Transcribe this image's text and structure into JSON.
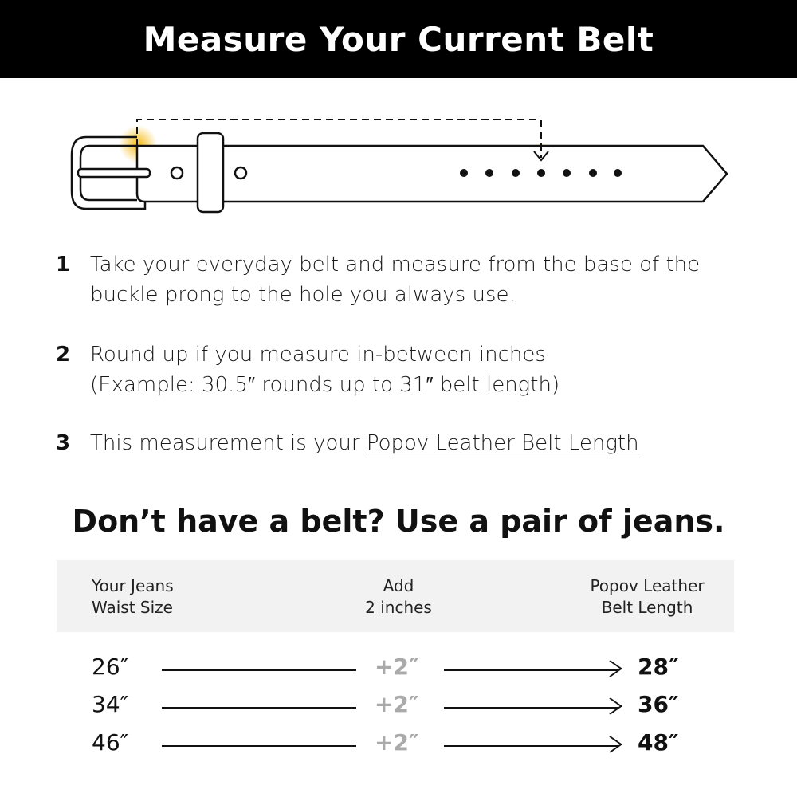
{
  "header": {
    "title": "Measure Your Current Belt"
  },
  "colors": {
    "highlight": "#f5b400",
    "table_header_bg": "#f2f2f2",
    "add_text": "#aaaaaa"
  },
  "steps": [
    {
      "num": "1",
      "lines": [
        "Take your everyday belt and measure from the base of the",
        "buckle prong to the hole you always use."
      ]
    },
    {
      "num": "2",
      "lines": [
        "Round up if you measure in-between inches",
        "(Example: 30.5″ rounds up to 31″ belt length)"
      ]
    },
    {
      "num": "3",
      "text": "This measurement is your ",
      "link": "Popov Leather Belt Length"
    }
  ],
  "jeans": {
    "heading": "Don’t have a belt? Use a pair of jeans.",
    "columns": [
      [
        "Your Jeans",
        "Waist Size"
      ],
      [
        "Add",
        "2 inches"
      ],
      [
        "Popov Leather",
        "Belt Length"
      ]
    ],
    "rows": [
      {
        "waist": "26″",
        "add": "+2″",
        "belt": "28″"
      },
      {
        "waist": "34″",
        "add": "+2″",
        "belt": "36″"
      },
      {
        "waist": "46″",
        "add": "+2″",
        "belt": "48″"
      }
    ]
  }
}
